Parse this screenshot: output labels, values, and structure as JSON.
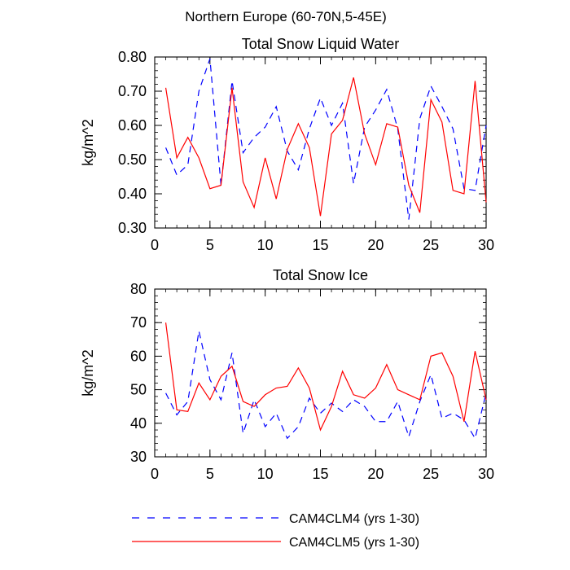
{
  "figure_title": "Northern Europe (60-70N,5-45E)",
  "colors": {
    "CAM4CLM4": "#0000ff",
    "CAM4CLM5": "#ff0000",
    "axes": "#000000"
  },
  "legend": {
    "placement": "bottom",
    "entries": [
      {
        "label": "CAM4CLM4 (yrs 1-30)",
        "color": "#0000ff",
        "style": "dashed"
      },
      {
        "label": "CAM4CLM5 (yrs 1-30)",
        "color": "#ff0000",
        "style": "solid"
      }
    ]
  },
  "chart_data": [
    {
      "type": "line",
      "title": "Total Snow Liquid Water",
      "xlabel": "",
      "ylabel": "kg/m^2",
      "xlim": [
        0,
        30
      ],
      "ylim": [
        0.3,
        0.8
      ],
      "x_ticks": [
        0,
        5,
        10,
        15,
        20,
        25,
        30
      ],
      "y_ticks": [
        0.3,
        0.4,
        0.5,
        0.6,
        0.7,
        0.8
      ],
      "y_tick_labels": [
        "0.30",
        "0.40",
        "0.50",
        "0.60",
        "0.70",
        "0.80"
      ],
      "grid": false,
      "x": [
        1,
        2,
        3,
        4,
        5,
        6,
        7,
        8,
        9,
        10,
        11,
        12,
        13,
        14,
        15,
        16,
        17,
        18,
        19,
        20,
        21,
        22,
        23,
        24,
        25,
        26,
        27,
        28,
        29,
        30
      ],
      "series": [
        {
          "name": "CAM4CLM4 (yrs 1-30)",
          "color": "#0000ff",
          "style": "dashed",
          "values": [
            0.535,
            0.455,
            0.485,
            0.7,
            0.795,
            0.425,
            0.73,
            0.52,
            0.565,
            0.595,
            0.655,
            0.525,
            0.47,
            0.59,
            0.68,
            0.6,
            0.665,
            0.43,
            0.595,
            0.645,
            0.705,
            0.59,
            0.325,
            0.62,
            0.715,
            0.655,
            0.59,
            0.415,
            0.41,
            0.6
          ]
        },
        {
          "name": "CAM4CLM5 (yrs 1-30)",
          "color": "#ff0000",
          "style": "solid",
          "values": [
            0.71,
            0.505,
            0.565,
            0.505,
            0.415,
            0.425,
            0.71,
            0.435,
            0.36,
            0.505,
            0.385,
            0.53,
            0.605,
            0.535,
            0.335,
            0.575,
            0.615,
            0.74,
            0.575,
            0.485,
            0.605,
            0.595,
            0.425,
            0.345,
            0.675,
            0.61,
            0.41,
            0.4,
            0.73,
            0.375
          ]
        }
      ]
    },
    {
      "type": "line",
      "title": "Total Snow Ice",
      "xlabel": "",
      "ylabel": "kg/m^2",
      "xlim": [
        0,
        30
      ],
      "ylim": [
        30,
        80
      ],
      "x_ticks": [
        0,
        5,
        10,
        15,
        20,
        25,
        30
      ],
      "y_ticks": [
        30,
        40,
        50,
        60,
        70,
        80
      ],
      "y_tick_labels": [
        "30",
        "40",
        "50",
        "60",
        "70",
        "80"
      ],
      "grid": false,
      "x": [
        1,
        2,
        3,
        4,
        5,
        6,
        7,
        8,
        9,
        10,
        11,
        12,
        13,
        14,
        15,
        16,
        17,
        18,
        19,
        20,
        21,
        22,
        23,
        24,
        25,
        26,
        27,
        28,
        29,
        30
      ],
      "series": [
        {
          "name": "CAM4CLM4 (yrs 1-30)",
          "color": "#0000ff",
          "style": "dashed",
          "values": [
            49,
            42.5,
            46.5,
            67.5,
            53,
            47,
            61,
            37,
            47,
            39,
            43,
            35.5,
            39,
            47.5,
            43,
            46,
            43.5,
            47,
            45,
            40.5,
            40.5,
            46.5,
            36,
            46.5,
            54.5,
            41.5,
            43,
            41,
            35.5,
            49
          ]
        },
        {
          "name": "CAM4CLM5 (yrs 1-30)",
          "color": "#ff0000",
          "style": "solid",
          "values": [
            70,
            44,
            43.5,
            52,
            47,
            54,
            57,
            46.5,
            45,
            48.5,
            50.5,
            51,
            56.5,
            50.5,
            38,
            45,
            55.5,
            48.5,
            47.5,
            50.5,
            57.5,
            50,
            48.5,
            47,
            60,
            61,
            54,
            40.5,
            61.5,
            47
          ]
        }
      ]
    }
  ]
}
